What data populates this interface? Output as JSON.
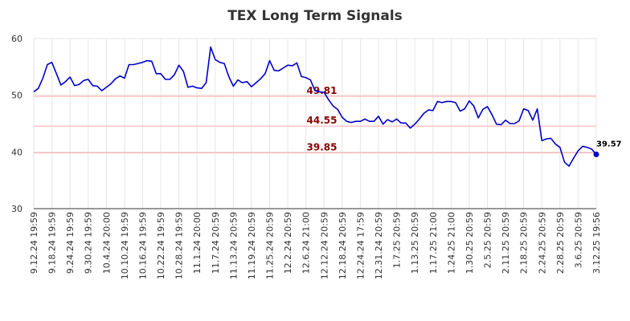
{
  "chart_data": {
    "type": "line",
    "title": "TEX Long Term Signals",
    "xlabel": "",
    "ylabel": "",
    "ylim": [
      30,
      60
    ],
    "yticks": [
      30,
      40,
      50,
      60
    ],
    "grid": true,
    "line_color": "#0000cc",
    "level_color": "#ffb3b3",
    "level_label_color": "#8b0000",
    "x_tick_labels": [
      "9.12.24 19:59",
      "9.18.24 19:59",
      "9.24.24 19:59",
      "9.30.24 19:59",
      "10.4.24 20:00",
      "10.10.24 19:59",
      "10.16.24 19:59",
      "10.22.24 19:59",
      "10.28.24 19:59",
      "11.1.24 20:00",
      "11.7.24 20:59",
      "11.13.24 20:59",
      "11.19.24 20:59",
      "11.25.24 20:59",
      "12.2.24 20:59",
      "12.6.24 21:00",
      "12.12.24 20:59",
      "12.18.24 20:59",
      "12.24.24 17:59",
      "12.31.24 20:59",
      "1.7.25 20:59",
      "1.13.25 20:59",
      "1.17.25 21:00",
      "1.24.25 21:00",
      "1.30.25 20:59",
      "2.5.25 20:59",
      "2.11.25 20:59",
      "2.18.25 20:59",
      "2.24.25 20:59",
      "2.28.25 20:59",
      "3.6.25 20:59",
      "3.12.25 19:56"
    ],
    "levels": [
      {
        "value": 49.81,
        "label": "49.81"
      },
      {
        "value": 44.55,
        "label": "44.55"
      },
      {
        "value": 39.85,
        "label": "39.85"
      }
    ],
    "last_value": 39.57,
    "last_label": "39.57",
    "series": [
      {
        "values": [
          50.6,
          51.2,
          53.0,
          55.4,
          55.8,
          53.8,
          51.8,
          52.4,
          53.2,
          51.7,
          51.9,
          52.6,
          52.8,
          51.7,
          51.6,
          50.8,
          51.4,
          52.0,
          52.9,
          53.4,
          53.0,
          55.4,
          55.4,
          55.6,
          55.8,
          56.1,
          56.0,
          53.8,
          53.8,
          52.8,
          52.8,
          53.6,
          55.3,
          54.2,
          51.4,
          51.6,
          51.3,
          51.2,
          52.2,
          58.5,
          56.3,
          55.8,
          55.6,
          53.3,
          51.6,
          52.7,
          52.2,
          52.4,
          51.5,
          52.2,
          52.9,
          53.8,
          56.1,
          54.4,
          54.3,
          54.8,
          55.3,
          55.2,
          55.7,
          53.3,
          53.1,
          52.7,
          50.8,
          50.6,
          50.5,
          49.2,
          48.1,
          47.5,
          46.1,
          45.4,
          45.2,
          45.4,
          45.4,
          45.8,
          45.4,
          45.4,
          46.3,
          44.9,
          45.7,
          45.3,
          45.8,
          45.1,
          45.1,
          44.2,
          44.9,
          45.8,
          46.8,
          47.4,
          47.3,
          48.9,
          48.7,
          48.9,
          48.9,
          48.7,
          47.2,
          47.6,
          49.0,
          48.1,
          46.0,
          47.5,
          48.0,
          46.6,
          44.9,
          44.8,
          45.6,
          45.0,
          45.0,
          45.5,
          47.6,
          47.3,
          45.6,
          47.6,
          42.0,
          42.3,
          42.4,
          41.4,
          40.8,
          38.2,
          37.5,
          38.9,
          40.2,
          41.0,
          40.8,
          40.5,
          39.57
        ]
      }
    ]
  }
}
